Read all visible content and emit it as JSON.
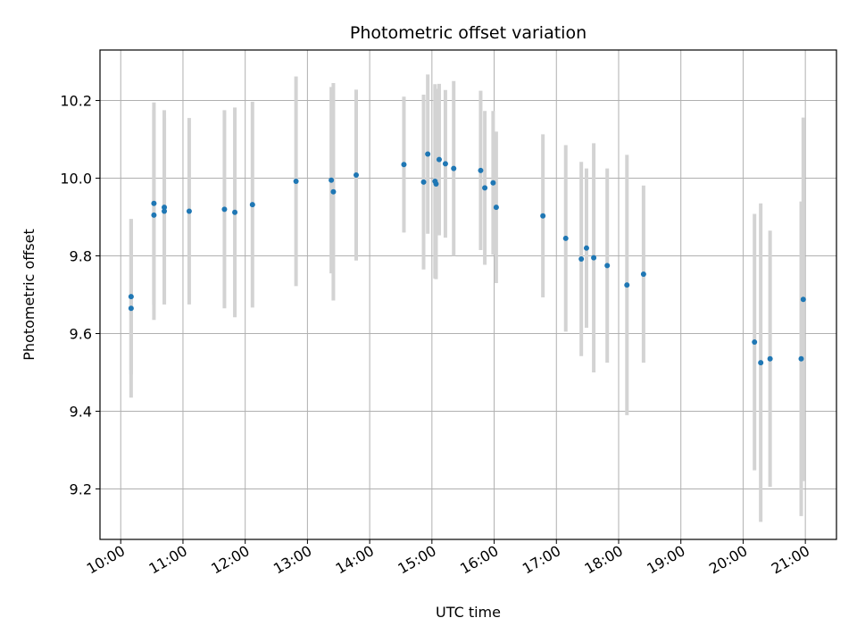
{
  "chart_data": {
    "type": "scatter",
    "title": "Photometric offset variation",
    "xlabel": "UTC time",
    "ylabel": "Photometric offset",
    "x_ticks": [
      "10:00",
      "11:00",
      "12:00",
      "13:00",
      "14:00",
      "15:00",
      "16:00",
      "17:00",
      "18:00",
      "19:00",
      "20:00",
      "21:00"
    ],
    "xlim": [
      "09:40",
      "21:30"
    ],
    "y_ticks": [
      "9.2",
      "9.4",
      "9.6",
      "9.8",
      "10.0",
      "10.2"
    ],
    "ylim": [
      9.07,
      10.33
    ],
    "grid": true,
    "colors": {
      "point": "#1f77b4",
      "errorbar": "#d3d3d3",
      "grid": "#b0b0b0"
    },
    "points": [
      {
        "x": "10:10",
        "y": 9.695,
        "err": 0.2
      },
      {
        "x": "10:10",
        "y": 9.665,
        "err": 0.23
      },
      {
        "x": "10:32",
        "y": 9.905,
        "err": 0.27
      },
      {
        "x": "10:32",
        "y": 9.935,
        "err": 0.26
      },
      {
        "x": "10:42",
        "y": 9.925,
        "err": 0.25
      },
      {
        "x": "10:42",
        "y": 9.915,
        "err": 0.24
      },
      {
        "x": "11:06",
        "y": 9.915,
        "err": 0.24
      },
      {
        "x": "11:40",
        "y": 9.92,
        "err": 0.255
      },
      {
        "x": "11:50",
        "y": 9.912,
        "err": 0.27
      },
      {
        "x": "12:07",
        "y": 9.932,
        "err": 0.265
      },
      {
        "x": "12:49",
        "y": 9.992,
        "err": 0.27
      },
      {
        "x": "13:23",
        "y": 9.995,
        "err": 0.24
      },
      {
        "x": "13:25",
        "y": 9.965,
        "err": 0.28
      },
      {
        "x": "13:47",
        "y": 10.008,
        "err": 0.22
      },
      {
        "x": "14:33",
        "y": 10.035,
        "err": 0.175
      },
      {
        "x": "14:52",
        "y": 9.99,
        "err": 0.225
      },
      {
        "x": "14:56",
        "y": 10.062,
        "err": 0.205
      },
      {
        "x": "15:03",
        "y": 9.992,
        "err": 0.25
      },
      {
        "x": "15:04",
        "y": 9.985,
        "err": 0.245
      },
      {
        "x": "15:07",
        "y": 10.048,
        "err": 0.195
      },
      {
        "x": "15:13",
        "y": 10.037,
        "err": 0.19
      },
      {
        "x": "15:21",
        "y": 10.025,
        "err": 0.225
      },
      {
        "x": "15:47",
        "y": 10.02,
        "err": 0.205
      },
      {
        "x": "15:51",
        "y": 9.975,
        "err": 0.198
      },
      {
        "x": "15:59",
        "y": 9.988,
        "err": 0.185
      },
      {
        "x": "16:02",
        "y": 9.925,
        "err": 0.195
      },
      {
        "x": "16:47",
        "y": 9.903,
        "err": 0.21
      },
      {
        "x": "17:09",
        "y": 9.845,
        "err": 0.24
      },
      {
        "x": "17:24",
        "y": 9.792,
        "err": 0.25
      },
      {
        "x": "17:29",
        "y": 9.82,
        "err": 0.205
      },
      {
        "x": "17:36",
        "y": 9.795,
        "err": 0.295
      },
      {
        "x": "17:49",
        "y": 9.775,
        "err": 0.25
      },
      {
        "x": "18:08",
        "y": 9.725,
        "err": 0.335
      },
      {
        "x": "18:24",
        "y": 9.753,
        "err": 0.228
      },
      {
        "x": "20:11",
        "y": 9.578,
        "err": 0.33
      },
      {
        "x": "20:17",
        "y": 9.525,
        "err": 0.41
      },
      {
        "x": "20:26",
        "y": 9.535,
        "err": 0.33
      },
      {
        "x": "20:56",
        "y": 9.535,
        "err": 0.405
      },
      {
        "x": "20:58",
        "y": 9.688,
        "err": 0.468
      }
    ]
  }
}
